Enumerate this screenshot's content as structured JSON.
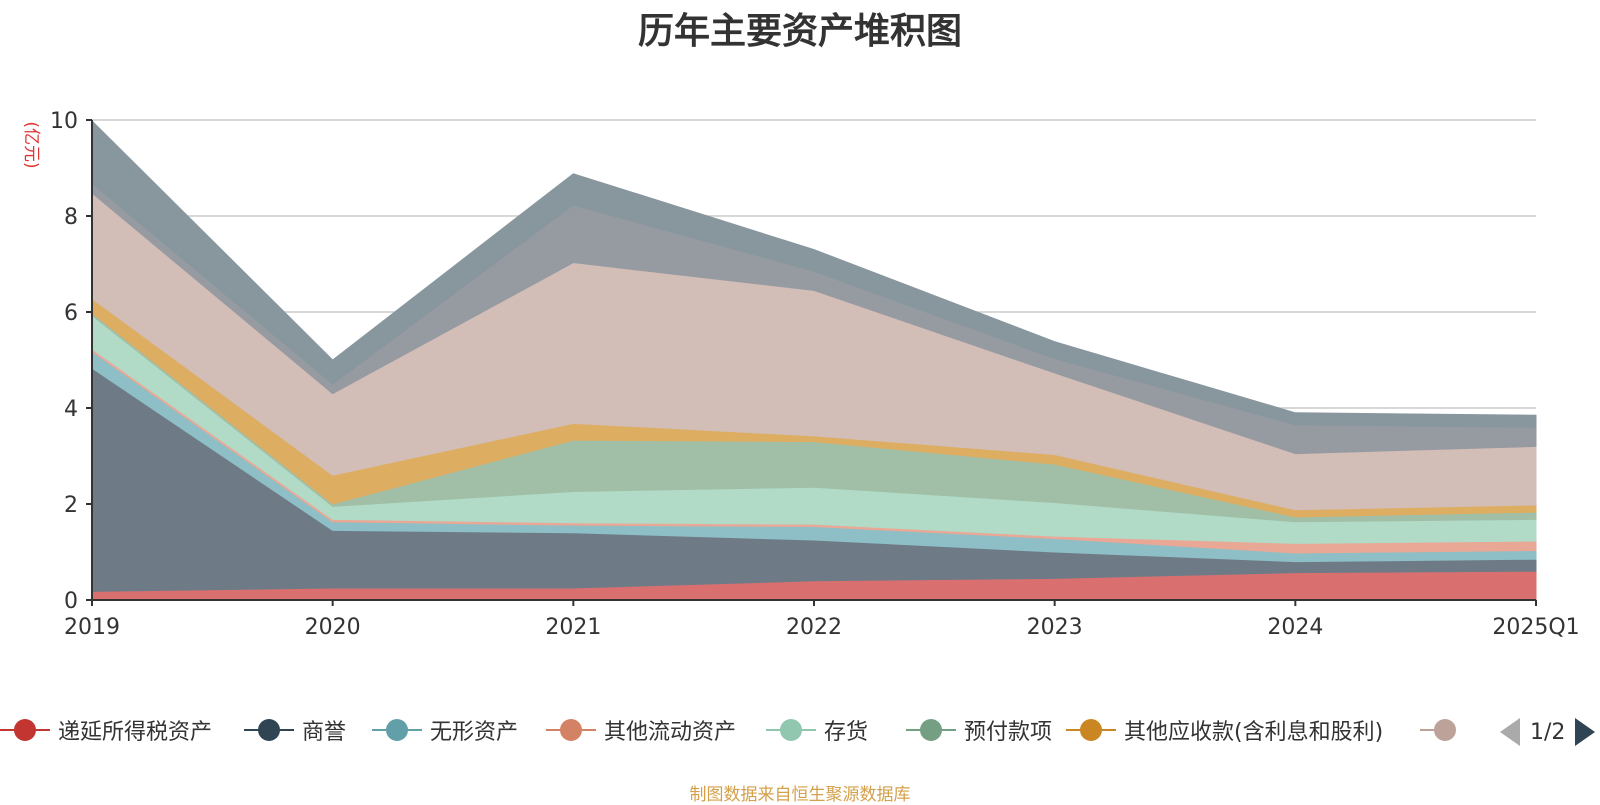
{
  "chart_data": {
    "type": "area",
    "stacked": true,
    "title": "历年主要资产堆积图",
    "unit_label": "(亿元)",
    "x": [
      "2019",
      "2020",
      "2021",
      "2022",
      "2023",
      "2024",
      "2025Q1"
    ],
    "ylim": [
      0,
      10
    ],
    "yticks": [
      "0",
      "2",
      "4",
      "6",
      "8",
      "10"
    ],
    "grid": true,
    "legend_position": "bottom",
    "series": [
      {
        "name": "递延所得税资产",
        "color": "#d9706f",
        "legend_color": "#c23531",
        "values": [
          0.18,
          0.25,
          0.25,
          0.4,
          0.45,
          0.57,
          0.6
        ]
      },
      {
        "name": "商誉",
        "color": "#6e7b87",
        "legend_color": "#2f4554",
        "values": [
          4.65,
          1.2,
          1.15,
          0.85,
          0.55,
          0.23,
          0.25
        ]
      },
      {
        "name": "无形资产",
        "color": "#8ebfc6",
        "legend_color": "#61a0a8",
        "values": [
          0.35,
          0.18,
          0.16,
          0.28,
          0.28,
          0.18,
          0.18
        ]
      },
      {
        "name": "其他流动资产",
        "color": "#e9a896",
        "legend_color": "#d48265",
        "values": [
          0.05,
          0.05,
          0.05,
          0.05,
          0.05,
          0.2,
          0.2
        ]
      },
      {
        "name": "存货",
        "color": "#b1dbc7",
        "legend_color": "#91c7ae",
        "values": [
          0.7,
          0.27,
          0.65,
          0.77,
          0.7,
          0.45,
          0.45
        ]
      },
      {
        "name": "预付款项",
        "color": "#a1bfa7",
        "legend_color": "#749f83",
        "values": [
          0.05,
          0.05,
          1.07,
          0.95,
          0.8,
          0.1,
          0.15
        ]
      },
      {
        "name": "其他应收款(含利息和股利)",
        "color": "#ddad62",
        "legend_color": "#ca8622",
        "values": [
          0.3,
          0.6,
          0.35,
          0.12,
          0.2,
          0.15,
          0.15
        ]
      },
      {
        "name": "",
        "color": "#d2bdb7",
        "legend_color": "#bda29a",
        "values": [
          2.2,
          1.7,
          3.35,
          3.03,
          1.7,
          1.17,
          1.22
        ]
      },
      {
        "name": "",
        "color": "#969aa1",
        "legend_color": "#6e7074",
        "values": [
          0.2,
          0.2,
          1.2,
          0.4,
          0.3,
          0.6,
          0.4
        ]
      },
      {
        "name": "",
        "color": "#88969e",
        "legend_color": "#546570",
        "values": [
          1.3,
          0.5,
          0.65,
          0.45,
          0.35,
          0.25,
          0.25
        ]
      }
    ]
  },
  "legend": {
    "page_text": "1/2"
  },
  "footer": {
    "source_text": "制图数据来自恒生聚源数据库"
  }
}
